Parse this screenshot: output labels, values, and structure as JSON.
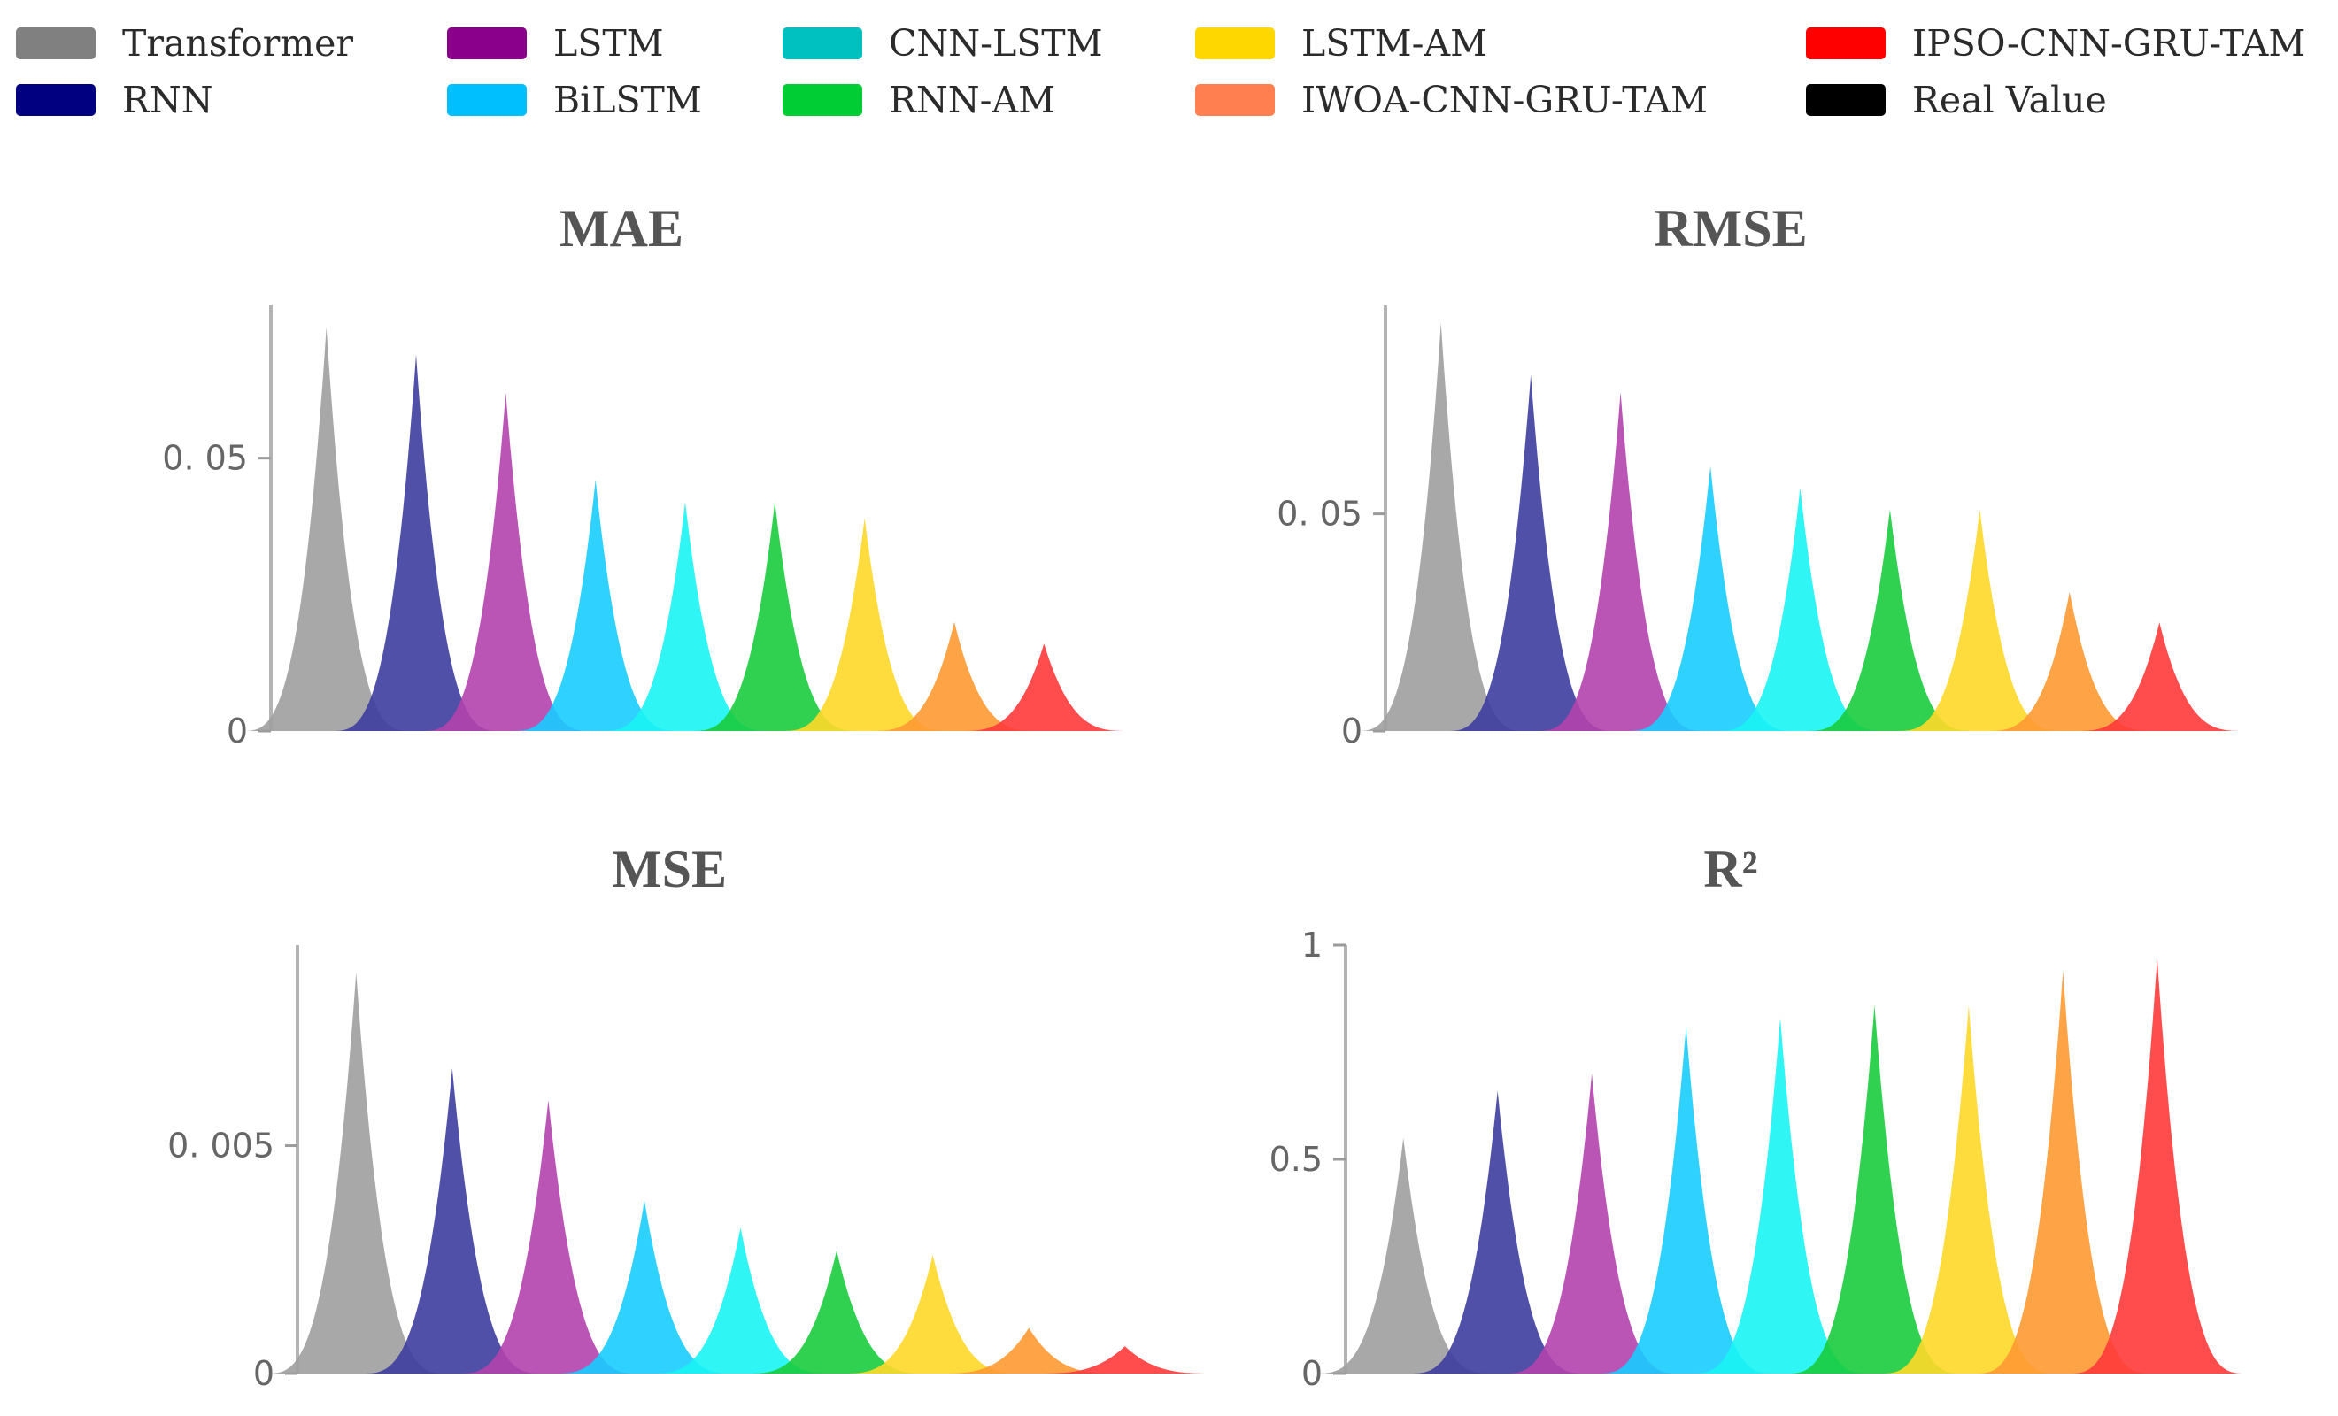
{
  "legend": [
    {
      "label": "Transformer",
      "color": "#808080"
    },
    {
      "label": "RNN",
      "color": "#000080"
    },
    {
      "label": "LSTM",
      "color": "#8B008B"
    },
    {
      "label": "BiLSTM",
      "color": "#00BFFF"
    },
    {
      "label": "CNN-LSTM",
      "color": "#00C0C0"
    },
    {
      "label": "RNN-AM",
      "color": "#00CC33"
    },
    {
      "label": "LSTM-AM",
      "color": "#FFD700"
    },
    {
      "label": "IWOA-CNN-GRU-TAM",
      "color": "#FF7F50"
    },
    {
      "label": "IPSO-CNN-GRU-TAM",
      "color": "#FF0000"
    },
    {
      "label": "Real Value",
      "color": "#000000"
    }
  ],
  "chart_data": [
    {
      "type": "area",
      "title": "MAE",
      "categories": [
        "Transformer",
        "RNN",
        "LSTM",
        "BiLSTM",
        "CNN-LSTM",
        "RNN-AM",
        "LSTM-AM",
        "IWOA-CNN-GRU-TAM",
        "IPSO-CNN-GRU-TAM"
      ],
      "values": [
        0.074,
        0.069,
        0.062,
        0.046,
        0.042,
        0.042,
        0.039,
        0.02,
        0.016
      ],
      "colors": [
        "#9E9E9E",
        "#3D3D9F",
        "#B342AD",
        "#18CCFF",
        "#1AF4F4",
        "#19CC3D",
        "#FFD829",
        "#FF9933",
        "#FF3A3A"
      ],
      "ylim": [
        0,
        0.078
      ],
      "yticks": [
        {
          "value": 0,
          "label": "0"
        },
        {
          "value": 0.05,
          "label": "0. 05"
        }
      ]
    },
    {
      "type": "area",
      "title": "RMSE",
      "categories": [
        "Transformer",
        "RNN",
        "LSTM",
        "BiLSTM",
        "CNN-LSTM",
        "RNN-AM",
        "LSTM-AM",
        "IWOA-CNN-GRU-TAM",
        "IPSO-CNN-GRU-TAM"
      ],
      "values": [
        0.094,
        0.082,
        0.078,
        0.061,
        0.056,
        0.051,
        0.051,
        0.032,
        0.025
      ],
      "colors": [
        "#9E9E9E",
        "#3D3D9F",
        "#B342AD",
        "#18CCFF",
        "#1AF4F4",
        "#19CC3D",
        "#FFD829",
        "#FF9933",
        "#FF3A3A"
      ],
      "ylim": [
        0,
        0.098
      ],
      "yticks": [
        {
          "value": 0,
          "label": "0"
        },
        {
          "value": 0.05,
          "label": "0. 05"
        }
      ]
    },
    {
      "type": "area",
      "title": "MSE",
      "categories": [
        "Transformer",
        "RNN",
        "LSTM",
        "BiLSTM",
        "CNN-LSTM",
        "RNN-AM",
        "LSTM-AM",
        "IWOA-CNN-GRU-TAM",
        "IPSO-CNN-GRU-TAM"
      ],
      "values": [
        0.0088,
        0.0067,
        0.006,
        0.0038,
        0.0032,
        0.0027,
        0.0026,
        0.001,
        0.0006
      ],
      "colors": [
        "#9E9E9E",
        "#3D3D9F",
        "#B342AD",
        "#18CCFF",
        "#1AF4F4",
        "#19CC3D",
        "#FFD829",
        "#FF9933",
        "#FF3A3A"
      ],
      "ylim": [
        0,
        0.0094
      ],
      "yticks": [
        {
          "value": 0,
          "label": "0"
        },
        {
          "value": 0.005,
          "label": "0. 005"
        }
      ]
    },
    {
      "type": "area",
      "title": "R²",
      "categories": [
        "Transformer",
        "RNN",
        "LSTM",
        "BiLSTM",
        "CNN-LSTM",
        "RNN-AM",
        "LSTM-AM",
        "IWOA-CNN-GRU-TAM",
        "IPSO-CNN-GRU-TAM"
      ],
      "values": [
        0.55,
        0.66,
        0.7,
        0.81,
        0.83,
        0.86,
        0.86,
        0.94,
        0.97
      ],
      "colors": [
        "#9E9E9E",
        "#3D3D9F",
        "#B342AD",
        "#18CCFF",
        "#1AF4F4",
        "#19CC3D",
        "#FFD829",
        "#FF9933",
        "#FF3A3A"
      ],
      "ylim": [
        0,
        1.0
      ],
      "yticks": [
        {
          "value": 0,
          "label": "0"
        },
        {
          "value": 0.5,
          "label": "0.5"
        },
        {
          "value": 1,
          "label": "1"
        }
      ]
    }
  ]
}
